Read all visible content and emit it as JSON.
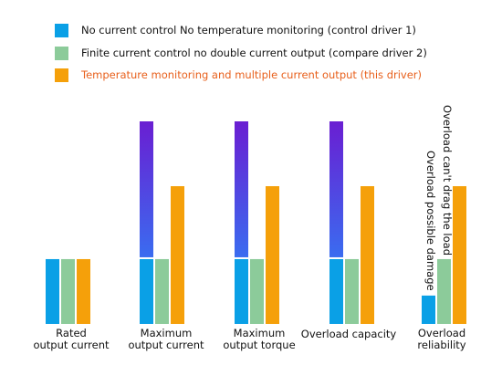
{
  "legend": [
    {
      "label": "No current control No temperature monitoring (control driver 1)",
      "color": "#0aa0e6",
      "text_color": "#111111"
    },
    {
      "label": "Finite current control no double current output (compare driver 2)",
      "color": "#8ccb9a",
      "text_color": "#111111"
    },
    {
      "label": "Temperature monitoring and multiple current output (this driver)",
      "color": "#f5a00a",
      "text_color": "#e8601c"
    }
  ],
  "chart_data": {
    "type": "bar",
    "title": "",
    "xlabel": "",
    "ylabel": "",
    "ylim": [
      0,
      100
    ],
    "grid": false,
    "legend_position": "top-left",
    "categories": [
      [
        "Rated",
        "output current"
      ],
      [
        "Maximum",
        "output current"
      ],
      [
        "Maximum",
        "output torque"
      ],
      [
        "Overload capacity"
      ],
      [
        "Overload",
        "reliability"
      ]
    ],
    "series": [
      {
        "name": "No current control No temperature monitoring (control driver 1)",
        "color": "#0aa0e6",
        "values": [
          32,
          100,
          100,
          100,
          14
        ]
      },
      {
        "name": "Finite current control no double current output (compare driver 2)",
        "color": "#8ccb9a",
        "values": [
          32,
          32,
          32,
          32,
          32
        ]
      },
      {
        "name": "Temperature monitoring and multiple current output (this driver)",
        "color": "#f5a00a",
        "values": [
          32,
          68,
          68,
          68,
          68
        ]
      }
    ],
    "overload_gradient": {
      "base_value": 32,
      "colors": [
        "#3a6cf0",
        "#6a1ed2"
      ]
    },
    "annotations": [
      "Overload can't drag the load",
      "Overload possible damage"
    ]
  }
}
